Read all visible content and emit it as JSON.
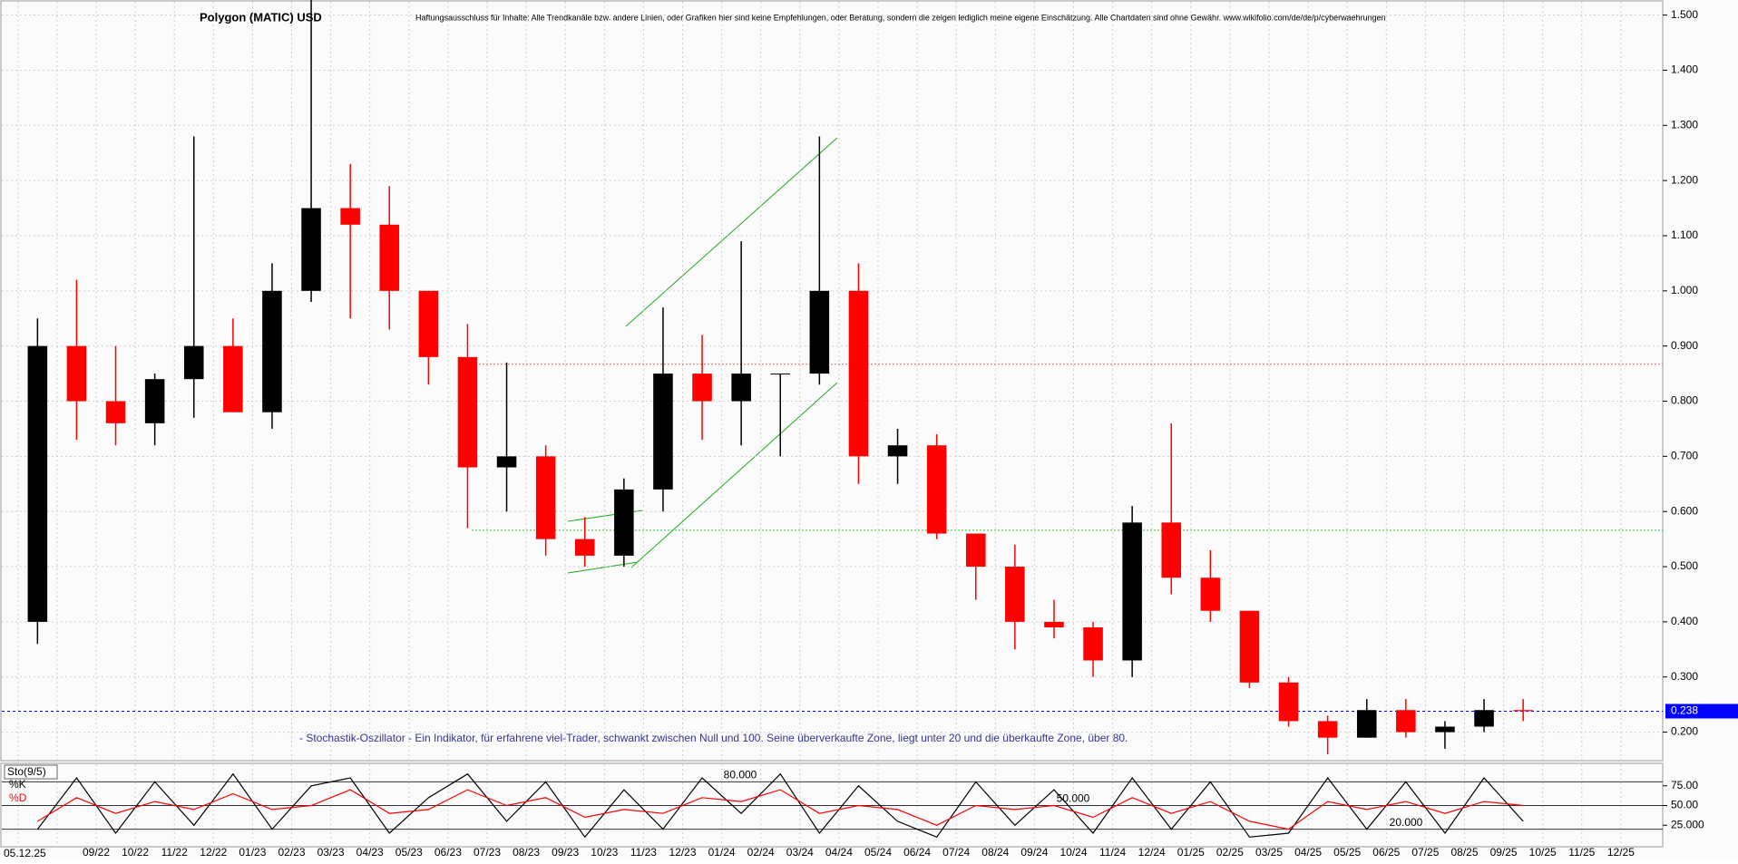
{
  "chart_data": [
    {
      "type": "candlestick",
      "title": "Polygon (MATIC) USD",
      "disclaimer": "Haftungsausschluss für Inhalte: Alle Trendkanäle bzw. andere Linien, oder Grafiken hier sind keine Empfehlungen, oder Beratung, sondern die zeigen lediglich meine eigene Einschätzung. Alle Chartdaten sind ohne Gewähr.  www.wikifolio.com/de/de/p/cyberwaehrungen",
      "note": "- Stochastik-Oszillator - Ein Indikator, für erfahrene viel-Trader, schwankt zwischen Null und 100. Seine überverkaufte Zone, liegt unter 20 und die überkaufte Zone, über 80.",
      "date_label": "05.12.25",
      "categories": [
        null,
        null,
        "09/22",
        "10/22",
        "11/22",
        "12/22",
        "01/23",
        "02/23",
        "03/23",
        "04/23",
        "05/23",
        "06/23",
        "07/23",
        "08/23",
        "09/23",
        "10/23",
        "11/23",
        "12/23",
        "01/24",
        "02/24",
        "03/24",
        "04/24",
        "05/24",
        "06/24",
        "07/24",
        "08/24",
        "09/24",
        "10/24",
        "11/24",
        "12/24",
        "01/25",
        "02/25",
        "03/25",
        "04/25",
        "05/25",
        "06/25",
        "07/25",
        "08/25",
        "09/25",
        "10/25",
        "11/25",
        "12/25"
      ],
      "open": [
        0.4,
        0.9,
        0.8,
        0.76,
        0.84,
        0.9,
        0.78,
        1.0,
        1.15,
        1.12,
        1.0,
        0.88,
        0.68,
        0.7,
        0.55,
        0.52,
        0.64,
        0.85,
        0.8,
        0.85,
        0.85,
        1.0,
        0.7,
        0.72,
        0.56,
        0.5,
        0.4,
        0.39,
        0.33,
        0.58,
        0.48,
        0.42,
        0.29,
        0.22,
        0.19,
        0.24,
        0.2,
        0.21,
        0.24,
        null,
        null,
        null
      ],
      "high": [
        0.95,
        1.02,
        0.9,
        0.85,
        1.28,
        0.95,
        1.05,
        1.53,
        1.23,
        1.19,
        1.0,
        0.94,
        0.87,
        0.72,
        0.59,
        0.66,
        0.97,
        0.92,
        1.09,
        0.85,
        1.28,
        1.05,
        0.75,
        0.74,
        0.56,
        0.54,
        0.44,
        0.4,
        0.61,
        0.76,
        0.53,
        0.42,
        0.3,
        0.23,
        0.26,
        0.26,
        0.22,
        0.26,
        0.26,
        null,
        null,
        null
      ],
      "low": [
        0.36,
        0.73,
        0.72,
        0.72,
        0.77,
        0.78,
        0.75,
        0.98,
        0.95,
        0.93,
        0.83,
        0.57,
        0.6,
        0.52,
        0.5,
        0.5,
        0.6,
        0.73,
        0.72,
        0.7,
        0.83,
        0.65,
        0.65,
        0.55,
        0.44,
        0.35,
        0.37,
        0.3,
        0.3,
        0.45,
        0.4,
        0.28,
        0.21,
        0.16,
        0.19,
        0.19,
        0.17,
        0.2,
        0.22,
        null,
        null,
        null
      ],
      "close": [
        0.9,
        0.8,
        0.76,
        0.84,
        0.9,
        0.78,
        1.0,
        1.15,
        1.12,
        1.0,
        0.88,
        0.68,
        0.7,
        0.55,
        0.52,
        0.64,
        0.85,
        0.8,
        0.85,
        0.85,
        1.0,
        0.7,
        0.72,
        0.56,
        0.5,
        0.4,
        0.39,
        0.33,
        0.58,
        0.48,
        0.42,
        0.29,
        0.22,
        0.19,
        0.24,
        0.2,
        0.21,
        0.24,
        0.238,
        null,
        null,
        null
      ],
      "up_color": "#000000",
      "down_color": "#ff0000",
      "ylim": [
        0.15,
        1.524
      ],
      "yticks": [
        {
          "value": 0.2,
          "label": "0.200"
        },
        {
          "value": 0.3,
          "label": "0.300"
        },
        {
          "value": 0.4,
          "label": "0.400"
        },
        {
          "value": 0.5,
          "label": "0.500"
        },
        {
          "value": 0.6,
          "label": "0.600"
        },
        {
          "value": 0.7,
          "label": "0.700"
        },
        {
          "value": 0.8,
          "label": "0.800"
        },
        {
          "value": 0.9,
          "label": "0.900"
        },
        {
          "value": 1.0,
          "label": "1.000"
        },
        {
          "value": 1.1,
          "label": "1.100"
        },
        {
          "value": 1.2,
          "label": "1.200"
        },
        {
          "value": 1.3,
          "label": "1.300"
        },
        {
          "value": 1.4,
          "label": "1.400"
        },
        {
          "value": 1.5,
          "label": "1.500"
        }
      ],
      "grid": true,
      "hlines": [
        {
          "value": 0.867,
          "color": "#e07070"
        },
        {
          "value": 0.566,
          "color": "#33cc33"
        }
      ],
      "last_price": 0.238,
      "last_price_color": "#0000ff"
    },
    {
      "type": "line",
      "title": "Sto(9/5)",
      "ylim": [
        0,
        100
      ],
      "yticks": [
        {
          "value": 25,
          "label": "25.000"
        },
        {
          "value": 50,
          "label": "50.00"
        },
        {
          "value": 75,
          "label": "75.00"
        }
      ],
      "levels": [
        {
          "value": 80,
          "label": "80.000"
        },
        {
          "value": 50,
          "label": "50.000"
        },
        {
          "value": 20,
          "label": "20.000"
        }
      ],
      "series": [
        {
          "name": "%K",
          "color": "#000000",
          "values": [
            20,
            85,
            15,
            80,
            25,
            90,
            20,
            75,
            85,
            15,
            60,
            90,
            30,
            80,
            10,
            70,
            20,
            85,
            40,
            90,
            15,
            75,
            30,
            10,
            80,
            25,
            70,
            15,
            85,
            20,
            80,
            10,
            15,
            85,
            20,
            80,
            15,
            85,
            30
          ]
        },
        {
          "name": "%D",
          "color": "#ff0000",
          "values": [
            30,
            60,
            40,
            55,
            45,
            65,
            45,
            50,
            70,
            40,
            45,
            70,
            50,
            60,
            35,
            45,
            40,
            60,
            55,
            70,
            40,
            50,
            45,
            25,
            50,
            45,
            50,
            35,
            60,
            40,
            55,
            30,
            20,
            55,
            45,
            55,
            40,
            55,
            50
          ]
        }
      ]
    }
  ]
}
